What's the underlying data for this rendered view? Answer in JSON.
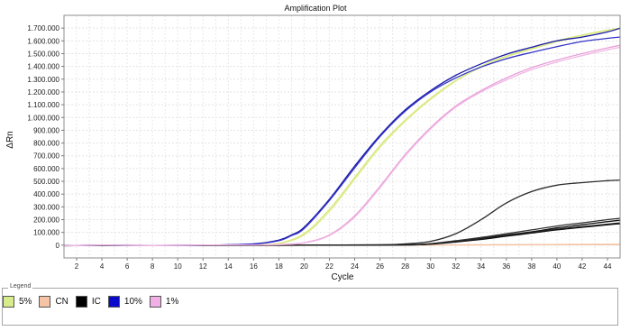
{
  "chart_data": {
    "type": "line",
    "title": "Amplification Plot",
    "xlabel": "Cycle",
    "ylabel": "ΔRn",
    "xlim": [
      1,
      45
    ],
    "ylim": [
      -100000,
      1800000
    ],
    "x_ticks": [
      2,
      4,
      6,
      8,
      10,
      12,
      14,
      16,
      18,
      20,
      22,
      24,
      26,
      28,
      30,
      32,
      34,
      36,
      38,
      40,
      42,
      44
    ],
    "x_tick_labels": [
      "2",
      "4",
      "6",
      "8",
      "10",
      "12",
      "14",
      "16",
      "18",
      "20",
      "22",
      "24",
      "26",
      "28",
      "30",
      "32",
      "34",
      "36",
      "38",
      "40",
      "42",
      "44"
    ],
    "y_ticks": [
      0,
      100000,
      200000,
      300000,
      400000,
      500000,
      600000,
      700000,
      800000,
      900000,
      1000000,
      1100000,
      1200000,
      1300000,
      1400000,
      1500000,
      1600000,
      1700000
    ],
    "y_tick_labels": [
      "0",
      "100.000",
      "200.000",
      "300.000",
      "400.000",
      "500.000",
      "600.000",
      "700.000",
      "800.000",
      "900.000",
      "1.000.000",
      "1.100.000",
      "1.200.000",
      "1.300.000",
      "1.400.000",
      "1.500.000",
      "1.600.000",
      "1.700.000"
    ],
    "grid": true,
    "legend_position": "bottom",
    "series": [
      {
        "name": "5%",
        "group": "5%",
        "color": "#d8e87a",
        "x": [
          1,
          4,
          8,
          12,
          16,
          18,
          20,
          22,
          24,
          26,
          28,
          30,
          32,
          34,
          36,
          38,
          40,
          42,
          44,
          45
        ],
        "y": [
          -5000,
          0,
          -3000,
          0,
          5000,
          15000,
          90000,
          280000,
          530000,
          780000,
          980000,
          1150000,
          1290000,
          1400000,
          1480000,
          1540000,
          1600000,
          1645000,
          1685000,
          1700000
        ]
      },
      {
        "name": "5%",
        "group": "5%",
        "color": "#e0ec92",
        "x": [
          1,
          4,
          8,
          12,
          16,
          18,
          20,
          22,
          24,
          26,
          28,
          30,
          32,
          34,
          36,
          38,
          40,
          42,
          44,
          45
        ],
        "y": [
          -6000,
          0,
          -2000,
          0,
          4000,
          12000,
          80000,
          265000,
          515000,
          765000,
          970000,
          1140000,
          1285000,
          1395000,
          1475000,
          1535000,
          1592000,
          1640000,
          1680000,
          1695000
        ]
      },
      {
        "name": "CN",
        "group": "CN",
        "color": "#f0b896",
        "x": [
          1,
          10,
          20,
          30,
          40,
          45
        ],
        "y": [
          -3000,
          -2000,
          0,
          2000,
          5000,
          7000
        ]
      },
      {
        "name": "CN",
        "group": "CN",
        "color": "#f5c6a8",
        "x": [
          1,
          10,
          20,
          30,
          40,
          45
        ],
        "y": [
          -4000,
          -3000,
          -1000,
          1000,
          3000,
          4000
        ]
      },
      {
        "name": "IC",
        "group": "IC",
        "color": "#2b2b2b",
        "x": [
          1,
          10,
          20,
          26,
          28,
          30,
          32,
          34,
          36,
          38,
          40,
          42,
          44,
          45
        ],
        "y": [
          -3000,
          -2000,
          0,
          2000,
          10000,
          30000,
          90000,
          200000,
          330000,
          420000,
          470000,
          490000,
          505000,
          510000
        ]
      },
      {
        "name": "IC",
        "group": "IC",
        "color": "#111111",
        "x": [
          1,
          10,
          20,
          28,
          30,
          32,
          34,
          36,
          38,
          40,
          42,
          44,
          45
        ],
        "y": [
          -3000,
          -2000,
          0,
          3000,
          10000,
          30000,
          55000,
          80000,
          105000,
          135000,
          160000,
          185000,
          195000
        ]
      },
      {
        "name": "IC",
        "group": "IC",
        "color": "#333333",
        "x": [
          1,
          10,
          20,
          28,
          30,
          32,
          34,
          36,
          38,
          40,
          42,
          44,
          45
        ],
        "y": [
          -3000,
          -2000,
          0,
          3000,
          12000,
          35000,
          60000,
          90000,
          120000,
          150000,
          175000,
          200000,
          210000
        ]
      },
      {
        "name": "IC",
        "group": "IC",
        "color": "#000000",
        "x": [
          1,
          10,
          20,
          28,
          30,
          32,
          34,
          36,
          38,
          40,
          42,
          44,
          45
        ],
        "y": [
          -3000,
          -2000,
          0,
          2000,
          8000,
          25000,
          45000,
          70000,
          95000,
          120000,
          140000,
          160000,
          168000
        ]
      },
      {
        "name": "IC",
        "group": "IC",
        "color": "#222222",
        "x": [
          1,
          10,
          20,
          28,
          30,
          32,
          34,
          36,
          38,
          40,
          42,
          44,
          45
        ],
        "y": [
          -3000,
          -2000,
          0,
          2000,
          9000,
          28000,
          50000,
          75000,
          100000,
          125000,
          145000,
          165000,
          175000
        ]
      },
      {
        "name": "10%",
        "group": "10%",
        "color": "#1a1aa8",
        "x": [
          1,
          4,
          8,
          12,
          16,
          18,
          19,
          20,
          22,
          24,
          26,
          28,
          30,
          32,
          34,
          36,
          38,
          40,
          42,
          44,
          45
        ],
        "y": [
          -4000,
          0,
          -2000,
          0,
          10000,
          40000,
          80000,
          140000,
          360000,
          620000,
          860000,
          1060000,
          1210000,
          1330000,
          1420000,
          1495000,
          1550000,
          1600000,
          1630000,
          1670000,
          1700000
        ]
      },
      {
        "name": "10%",
        "group": "10%",
        "color": "#3434c8",
        "x": [
          1,
          4,
          8,
          12,
          16,
          18,
          19,
          20,
          22,
          24,
          26,
          28,
          30,
          32,
          34,
          36,
          38,
          40,
          42,
          44,
          45
        ],
        "y": [
          -5000,
          0,
          -3000,
          0,
          9000,
          35000,
          75000,
          130000,
          350000,
          605000,
          850000,
          1050000,
          1200000,
          1310000,
          1395000,
          1460000,
          1510000,
          1555000,
          1595000,
          1620000,
          1630000
        ]
      },
      {
        "name": "1%",
        "group": "1%",
        "color": "#e8a0d8",
        "x": [
          1,
          4,
          8,
          12,
          16,
          18,
          20,
          22,
          24,
          26,
          28,
          30,
          32,
          34,
          36,
          38,
          40,
          42,
          44,
          45
        ],
        "y": [
          -4000,
          0,
          -2000,
          0,
          2000,
          5000,
          20000,
          80000,
          230000,
          460000,
          710000,
          920000,
          1090000,
          1210000,
          1310000,
          1390000,
          1450000,
          1500000,
          1545000,
          1565000
        ]
      },
      {
        "name": "1%",
        "group": "1%",
        "color": "#f0b8e4",
        "x": [
          1,
          4,
          8,
          12,
          16,
          18,
          20,
          22,
          24,
          26,
          28,
          30,
          32,
          34,
          36,
          38,
          40,
          42,
          44,
          45
        ],
        "y": [
          -5000,
          0,
          -3000,
          0,
          1000,
          4000,
          18000,
          75000,
          220000,
          450000,
          700000,
          910000,
          1080000,
          1200000,
          1295000,
          1375000,
          1435000,
          1485000,
          1530000,
          1550000
        ]
      }
    ]
  },
  "legend": {
    "title": "Legend",
    "items": [
      {
        "label": "5%",
        "color": "#d8ec8c"
      },
      {
        "label": "CN",
        "color": "#f5c4a6"
      },
      {
        "label": "IC",
        "color": "#000000"
      },
      {
        "label": "10%",
        "color": "#0a0acc"
      },
      {
        "label": "1%",
        "color": "#f0b0e6"
      }
    ]
  }
}
